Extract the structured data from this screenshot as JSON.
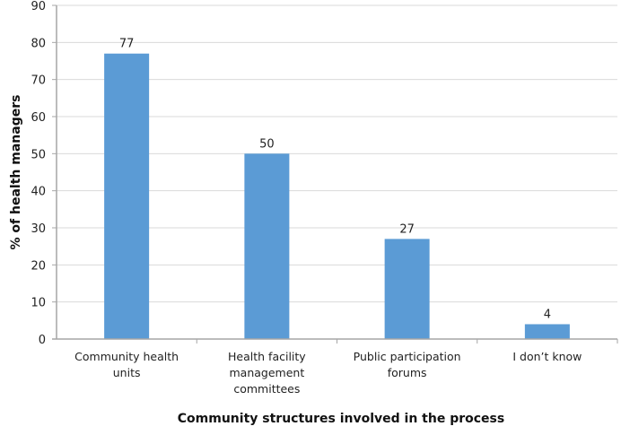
{
  "chart_data": {
    "type": "bar",
    "title": "",
    "xlabel": "Community structures involved in the process",
    "ylabel": "% of health managers",
    "categories": [
      [
        "Community health",
        "units"
      ],
      [
        "Health facility",
        "management",
        "committees"
      ],
      [
        "Public participation",
        "forums"
      ],
      [
        "I don’t know"
      ]
    ],
    "values": [
      77,
      50,
      27,
      4
    ],
    "data_labels": [
      "77",
      "50",
      "27",
      "4"
    ],
    "ylim": [
      0,
      90
    ],
    "yticks": [
      "0",
      "10",
      "20",
      "30",
      "40",
      "50",
      "60",
      "70",
      "80",
      "90"
    ],
    "grid": true,
    "legend": "none",
    "colors": {
      "bar": "#5b9bd5",
      "grid": "#d9d9d9",
      "axis": "#a6a6a6"
    }
  }
}
